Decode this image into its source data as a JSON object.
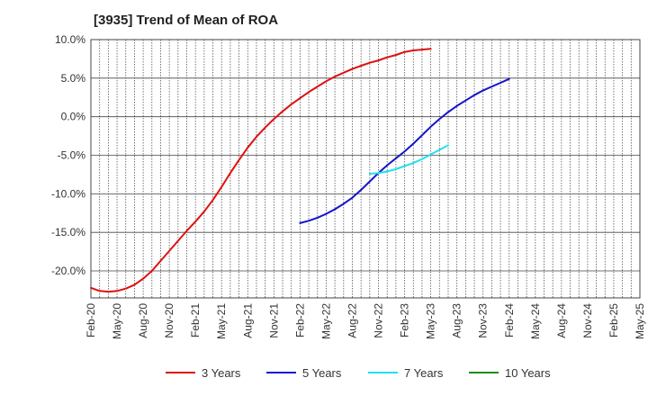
{
  "chart_data": {
    "type": "line",
    "title": "[3935]  Trend of Mean of ROA",
    "xlabel": "",
    "ylabel": "",
    "x_ticks": [
      "Feb-20",
      "May-20",
      "Aug-20",
      "Nov-20",
      "Feb-21",
      "May-21",
      "Aug-21",
      "Nov-21",
      "Feb-22",
      "May-22",
      "Aug-22",
      "Nov-22",
      "Feb-23",
      "May-23",
      "Aug-23",
      "Nov-23",
      "Feb-24",
      "May-24",
      "Aug-24",
      "Nov-24",
      "Feb-25",
      "May-25"
    ],
    "y_ticks": [
      "10.0%",
      "5.0%",
      "0.0%",
      "-5.0%",
      "-10.0%",
      "-15.0%",
      "-20.0%"
    ],
    "y_tick_values": [
      10,
      5,
      0,
      -5,
      -10,
      -15,
      -20
    ],
    "ylim": [
      -23.5,
      10
    ],
    "grid": true,
    "legend_position": "bottom",
    "series": [
      {
        "name": "3 Years",
        "color": "#dd1111",
        "start_index": 0,
        "values": [
          -22.2,
          -22.6,
          -22.7,
          -22.6,
          -22.3,
          -21.8,
          -21.0,
          -20.0,
          -18.7,
          -17.4,
          -16.1,
          -14.8,
          -13.6,
          -12.3,
          -10.8,
          -9.1,
          -7.3,
          -5.6,
          -4.0,
          -2.6,
          -1.4,
          -0.3,
          0.7,
          1.6,
          2.4,
          3.2,
          3.9,
          4.6,
          5.2,
          5.7,
          6.2,
          6.6,
          7.0,
          7.3,
          7.7,
          8.0,
          8.4,
          8.6,
          8.7,
          8.8
        ]
      },
      {
        "name": "5 Years",
        "color": "#1414cc",
        "start_index": 24,
        "values": [
          -13.8,
          -13.5,
          -13.1,
          -12.6,
          -12.0,
          -11.3,
          -10.5,
          -9.5,
          -8.4,
          -7.3,
          -6.3,
          -5.4,
          -4.5,
          -3.5,
          -2.4,
          -1.3,
          -0.3,
          0.6,
          1.4,
          2.1,
          2.8,
          3.4,
          3.9,
          4.4,
          4.9
        ]
      },
      {
        "name": "7 Years",
        "color": "#22e0ee",
        "start_index": 32,
        "values": [
          -7.4,
          -7.3,
          -7.1,
          -6.8,
          -6.4,
          -6.0,
          -5.5,
          -4.9,
          -4.3,
          -3.7
        ]
      },
      {
        "name": "10 Years",
        "color": "#1e8c1e",
        "start_index": 0,
        "values": []
      }
    ]
  }
}
